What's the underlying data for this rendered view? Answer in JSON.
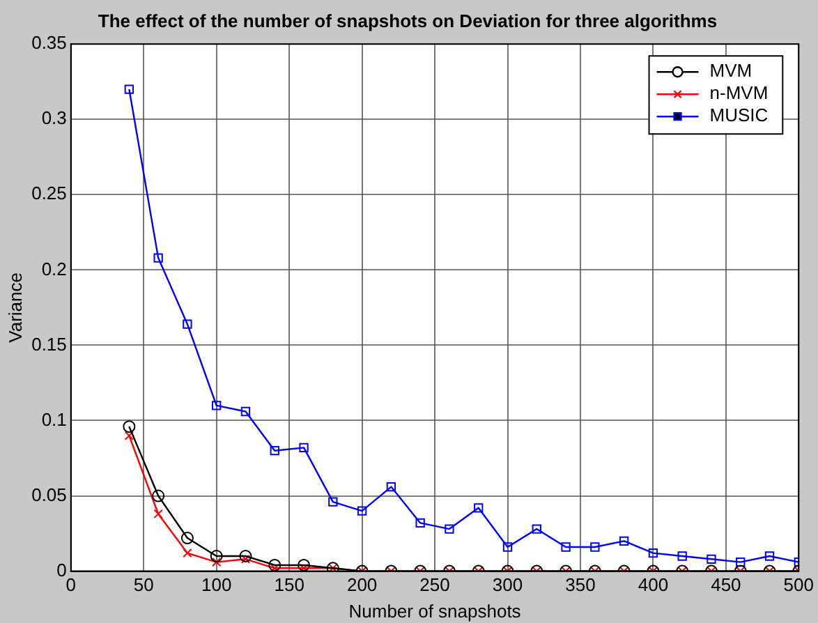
{
  "chart_data": {
    "type": "line",
    "title": "The effect of the number of snapshots on Deviation for three algorithms",
    "xlabel": "Number of snapshots",
    "ylabel": "Variance",
    "x": [
      40,
      60,
      80,
      100,
      120,
      140,
      160,
      180,
      200,
      220,
      240,
      260,
      280,
      300,
      320,
      340,
      360,
      380,
      400,
      420,
      440,
      460,
      480,
      500
    ],
    "series": [
      {
        "name": "MVM",
        "color": "#000000",
        "marker": "circle",
        "values": [
          0.096,
          0.05,
          0.022,
          0.01,
          0.01,
          0.004,
          0.004,
          0.002,
          0,
          0,
          0,
          0,
          0,
          0,
          0,
          0,
          0,
          0,
          0,
          0,
          0,
          0,
          0,
          0
        ]
      },
      {
        "name": "n-MVM",
        "color": "#ff0000",
        "marker": "cross",
        "values": [
          0.09,
          0.038,
          0.012,
          0.006,
          0.008,
          0.002,
          0.002,
          0.002,
          0,
          0,
          0,
          0,
          0,
          0,
          0,
          0,
          0,
          0,
          0,
          0,
          0,
          0,
          0,
          0
        ]
      },
      {
        "name": "MUSIC",
        "color": "#0000ff",
        "marker": "square",
        "values": [
          0.32,
          0.208,
          0.164,
          0.11,
          0.106,
          0.08,
          0.082,
          0.046,
          0.04,
          0.056,
          0.032,
          0.028,
          0.042,
          0.016,
          0.028,
          0.016,
          0.016,
          0.02,
          0.012,
          0.01,
          0.008,
          0.006,
          0.01,
          0.006
        ]
      }
    ],
    "xlim": [
      0,
      500
    ],
    "xticks": [
      0,
      50,
      100,
      150,
      200,
      250,
      300,
      350,
      400,
      450,
      500
    ],
    "ylim": [
      0,
      0.35
    ],
    "yticks": [
      0,
      0.05,
      0.1,
      0.15,
      0.2,
      0.25,
      0.3,
      0.35
    ],
    "grid": true,
    "legend": "top right",
    "line_style": "solid"
  }
}
